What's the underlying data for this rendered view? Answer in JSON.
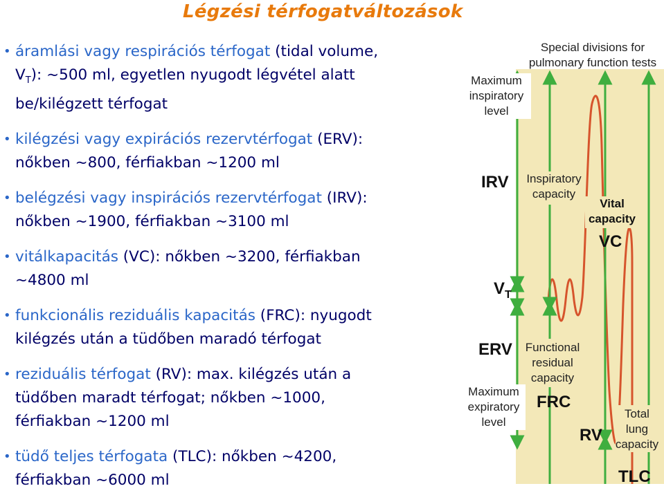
{
  "title": "Légzési térfogatváltozások",
  "bullets": [
    {
      "pre": "áramlási vagy respirációs térfogat",
      "post_l1": " (tidal volume,",
      "l2a": "V",
      "l2sub": "T",
      "l2b": "): ~500 ml, egyetlen nyugodt légvétel alatt",
      "l3": "be/kilégzett térfogat"
    },
    {
      "pre": "kilégzési vagy expirációs rezervtérfogat",
      "post_l1": " (ERV):",
      "l2": "nőkben ~800, férfiakban ~1200 ml"
    },
    {
      "pre": "belégzési vagy inspirációs rezervtérfogat",
      "post_l1": " (IRV):",
      "l2": "nőkben ~1900, férfiakban ~3100 ml"
    },
    {
      "pre": "vitálkapacitás",
      "post_l1": " (VC): nőkben ~3200, férfiakban",
      "l2": "~4800 ml"
    },
    {
      "pre": "funkcionális reziduális kapacitás",
      "post_l1": " (FRC): nyugodt",
      "l2": "kilégzés után a tüdőben maradó térfogat"
    },
    {
      "pre": "reziduális térfogat",
      "post_l1": " (RV): max. kilégzés után a",
      "l2": "tüdőben maradt térfogat; nőkben ~1000,",
      "l3": "férfiakban ~1200 ml"
    },
    {
      "pre": "tüdő teljes térfogata",
      "post_l1": " (TLC): nőkben ~4200,",
      "l2": "férfiakban ~6000 ml"
    }
  ],
  "diagram": {
    "header_l1": "Special divisions for",
    "header_l2": "pulmonary function tests",
    "max_insp_l1": "Maximum",
    "max_insp_l2": "inspiratory",
    "max_insp_l3": "level",
    "irv": "IRV",
    "insp_cap_l1": "Inspiratory",
    "insp_cap_l2": "capacity",
    "vital_l1": "Vital",
    "vital_l2": "capacity",
    "vc": "VC",
    "vt": "V",
    "vt_sub": "T",
    "erv": "ERV",
    "frc_label_l1": "Functional",
    "frc_label_l2": "residual",
    "frc_label_l3": "capacity",
    "max_exp_l1": "Maximum",
    "max_exp_l2": "expiratory",
    "max_exp_l3": "level",
    "frc": "FRC",
    "rv": "RV",
    "total_l1": "Total",
    "total_l2": "lung",
    "total_l3": "capacity",
    "tlc": "TLC",
    "colors": {
      "panel": "#f3e8b8",
      "curve": "#d6542c",
      "arrow": "#3fae3f",
      "mask": "#ffffff"
    }
  }
}
